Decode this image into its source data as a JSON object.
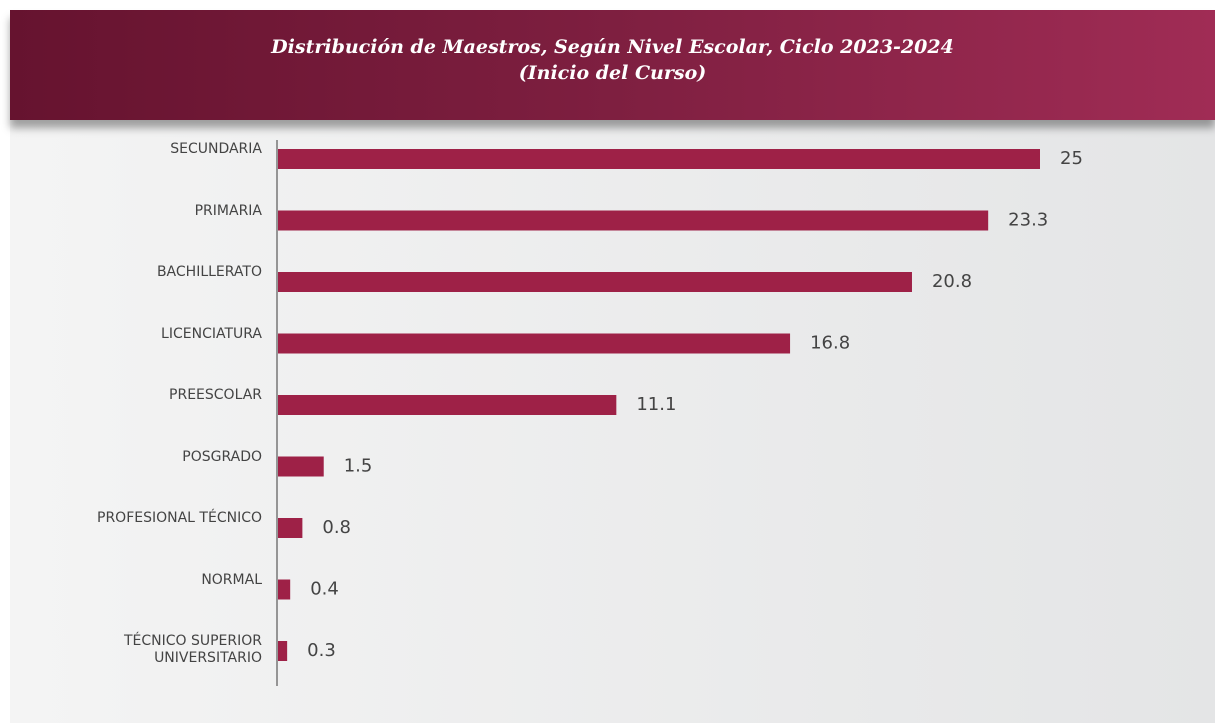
{
  "chart_data": {
    "type": "hbar",
    "title": "Distribución de Maestros, Según Nivel Escolar, Ciclo 2023-2024",
    "subtitle": "(Inicio del Curso)",
    "categories": [
      "SECUNDARIA",
      "PRIMARIA",
      "BACHILLERATO",
      "LICENCIATURA",
      "PREESCOLAR",
      "POSGRADO",
      "PROFESIONAL TÉCNICO",
      "NORMAL",
      "TÉCNICO SUPERIOR UNIVERSITARIO"
    ],
    "values": [
      25,
      23.3,
      20.8,
      16.8,
      11.1,
      1.5,
      0.8,
      0.4,
      0.3
    ],
    "color": "#9e2147"
  }
}
